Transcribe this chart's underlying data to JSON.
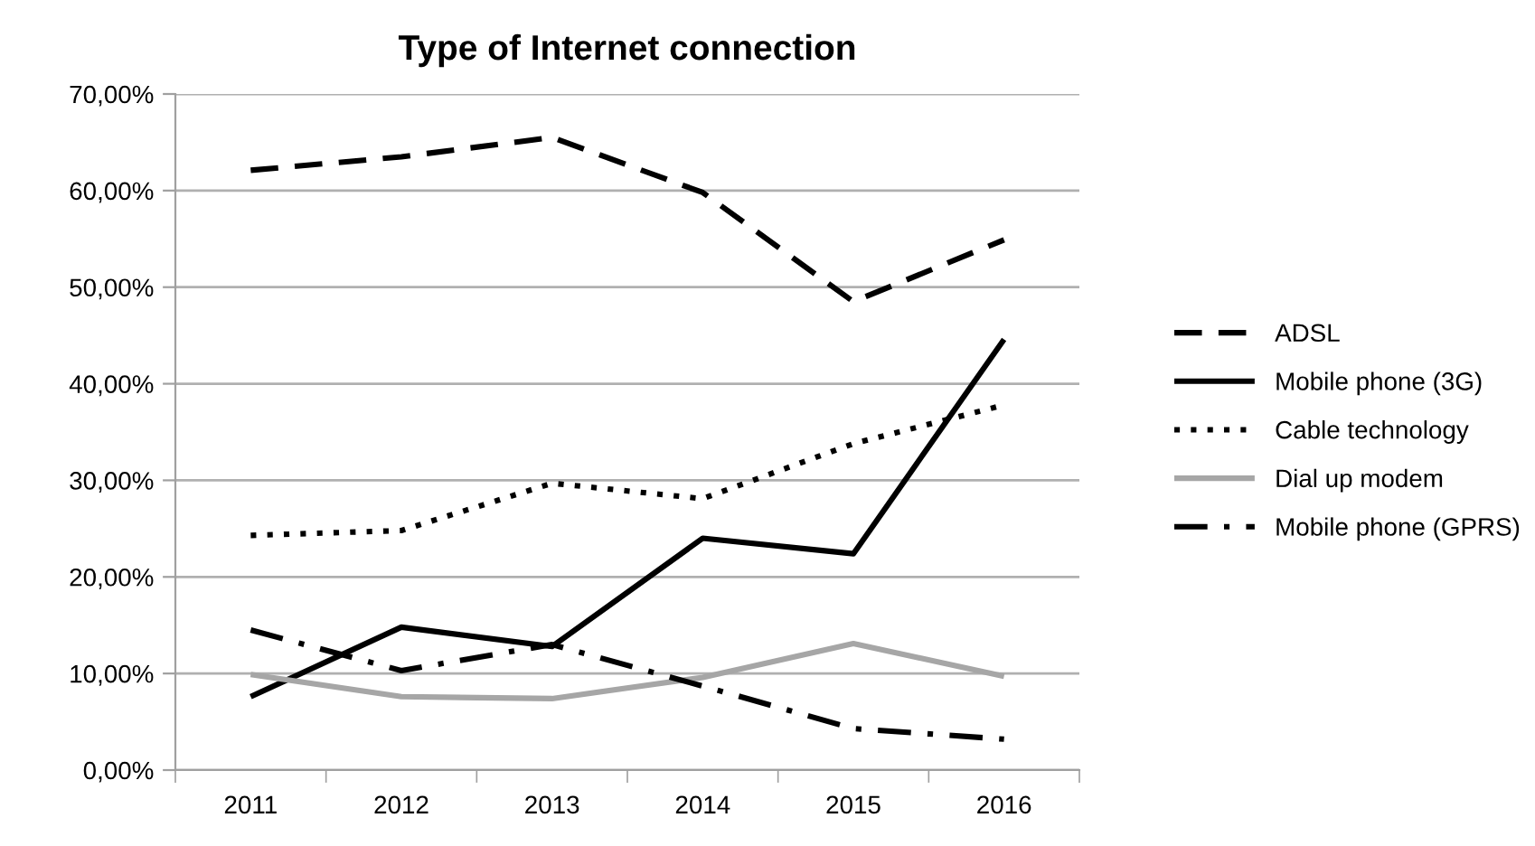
{
  "chart_data": {
    "type": "line",
    "title": "Type of Internet connection",
    "categories": [
      "2011",
      "2012",
      "2013",
      "2014",
      "2015",
      "2016"
    ],
    "series": [
      {
        "name": "ADSL",
        "color": "#000000",
        "line_style": "dashed",
        "values": [
          62.1,
          63.5,
          65.5,
          59.8,
          48.5,
          54.9
        ]
      },
      {
        "name": "Mobile phone (3G)",
        "color": "#000000",
        "line_style": "solid",
        "values": [
          7.6,
          14.8,
          12.8,
          24.0,
          22.4,
          44.6
        ]
      },
      {
        "name": "Cable technology",
        "color": "#000000",
        "line_style": "dotted",
        "values": [
          24.3,
          24.8,
          29.7,
          28.1,
          33.8,
          37.8
        ]
      },
      {
        "name": "Dial up modem",
        "color": "#a6a6a6",
        "line_style": "solid",
        "values": [
          9.9,
          7.6,
          7.4,
          9.6,
          13.1,
          9.7
        ]
      },
      {
        "name": "Mobile phone (GPRS)",
        "color": "#000000",
        "line_style": "dashdot",
        "values": [
          14.5,
          10.3,
          13.0,
          8.7,
          4.3,
          3.2
        ]
      }
    ],
    "ylim": [
      0,
      70
    ],
    "yticks": [
      {
        "value": 0,
        "label": "0,00%"
      },
      {
        "value": 10,
        "label": "10,00%"
      },
      {
        "value": 20,
        "label": "20,00%"
      },
      {
        "value": 30,
        "label": "30,00%"
      },
      {
        "value": 40,
        "label": "40,00%"
      },
      {
        "value": 50,
        "label": "50,00%"
      },
      {
        "value": 60,
        "label": "60,00%"
      },
      {
        "value": 70,
        "label": "70,00%"
      }
    ],
    "grid": "y",
    "legend": "right",
    "marker": "none"
  }
}
